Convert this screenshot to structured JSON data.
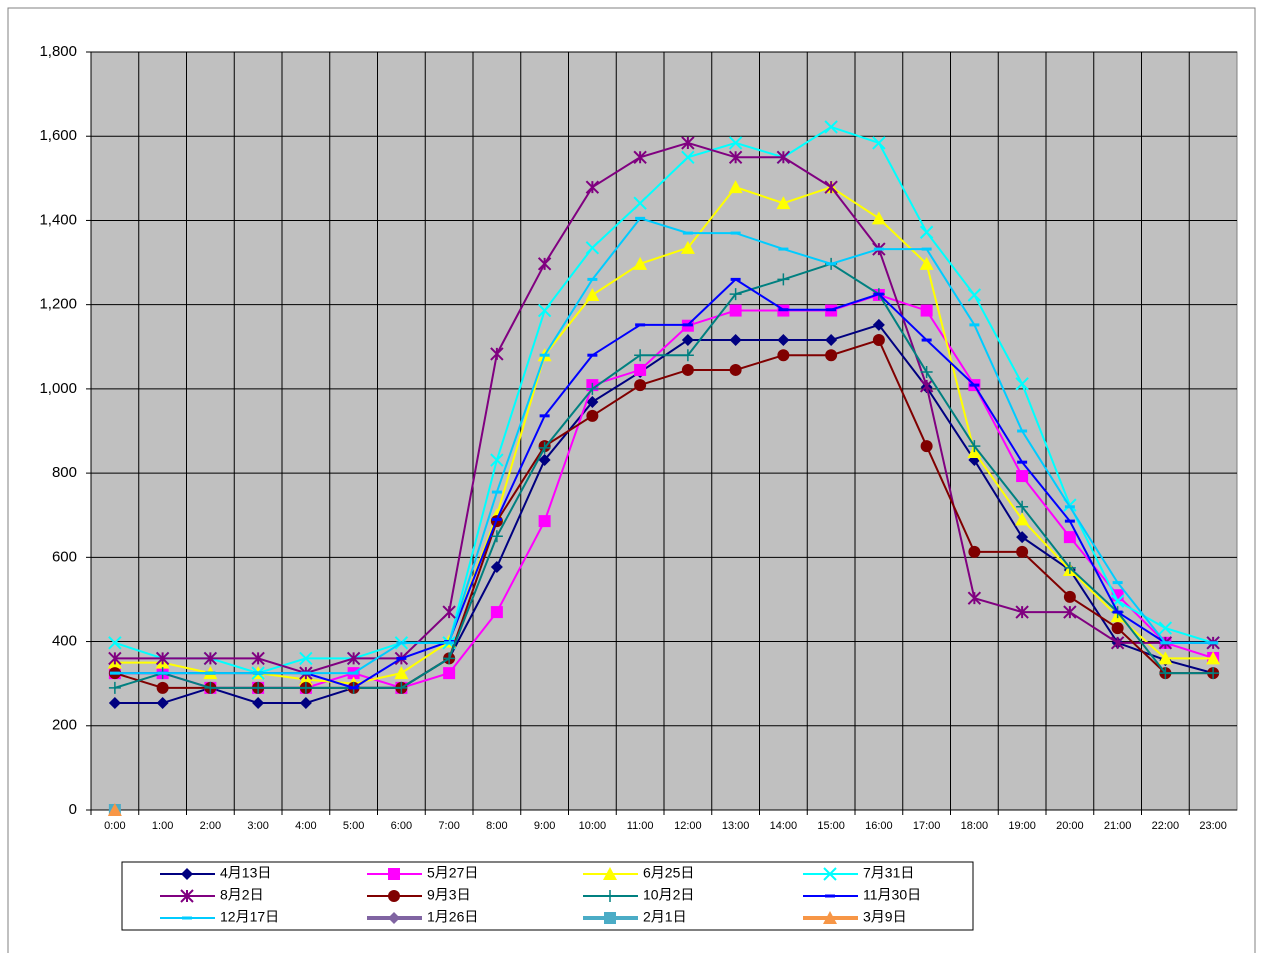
{
  "chart_data": {
    "type": "line",
    "categories": [
      "0:00",
      "1:00",
      "2:00",
      "3:00",
      "4:00",
      "5:00",
      "6:00",
      "7:00",
      "8:00",
      "9:00",
      "10:00",
      "11:00",
      "12:00",
      "13:00",
      "14:00",
      "15:00",
      "16:00",
      "17:00",
      "18:00",
      "19:00",
      "20:00",
      "21:00",
      "22:00",
      "23:00"
    ],
    "ylim": [
      0,
      1800
    ],
    "yticks": [
      0,
      200,
      400,
      600,
      800,
      {
        "value": 1000,
        "label": "1,000"
      },
      {
        "value": 1200,
        "label": "1,200"
      },
      {
        "value": 1400,
        "label": "1,400"
      },
      {
        "value": 1600,
        "label": "1,600"
      },
      {
        "value": 1800,
        "label": "1,800"
      }
    ],
    "grid": true,
    "series": [
      {
        "name": "4月13日",
        "color": "#000080",
        "marker": "diamond",
        "values": [
          254,
          254,
          290,
          254,
          254,
          290,
          290,
          360,
          577,
          831,
          969,
          1040,
          1116,
          1116,
          1116,
          1116,
          1152,
          1004,
          831,
          648,
          570,
          397,
          356,
          325
        ]
      },
      {
        "name": "5月27日",
        "color": "#ff00ff",
        "marker": "square",
        "values": [
          325,
          325,
          290,
          290,
          290,
          325,
          290,
          325,
          470,
          686,
          1009,
          1045,
          1150,
          1186,
          1186,
          1186,
          1223,
          1186,
          1009,
          793,
          648,
          510,
          397,
          361
        ]
      },
      {
        "name": "6月25日",
        "color": "#ffff00",
        "marker": "triangle",
        "values": [
          350,
          350,
          325,
          325,
          310,
          300,
          325,
          400,
          700,
          1080,
          1223,
          1297,
          1335,
          1479,
          1441,
          1479,
          1405,
          1297,
          850,
          690,
          570,
          460,
          360,
          360
        ]
      },
      {
        "name": "7月31日",
        "color": "#00ffff",
        "marker": "x",
        "values": [
          397,
          360,
          360,
          325,
          360,
          360,
          397,
          397,
          831,
          1186,
          1335,
          1441,
          1550,
          1584,
          1550,
          1622,
          1584,
          1372,
          1223,
          1012,
          724,
          496,
          432,
          397
        ]
      },
      {
        "name": "8月2日",
        "color": "#800080",
        "marker": "asterisk",
        "values": [
          360,
          360,
          360,
          360,
          325,
          360,
          360,
          470,
          1083,
          1297,
          1479,
          1550,
          1584,
          1550,
          1550,
          1479,
          1332,
          1007,
          503,
          470,
          470,
          397,
          397,
          397
        ]
      },
      {
        "name": "9月3日",
        "color": "#800000",
        "marker": "circle",
        "values": [
          325,
          290,
          290,
          290,
          290,
          290,
          290,
          360,
          686,
          864,
          936,
          1009,
          1045,
          1045,
          1080,
          1080,
          1116,
          864,
          613,
          613,
          506,
          432,
          325,
          325
        ]
      },
      {
        "name": "10月2日",
        "color": "#008080",
        "marker": "plus",
        "values": [
          290,
          325,
          290,
          290,
          290,
          290,
          290,
          360,
          650,
          860,
          1000,
          1080,
          1080,
          1225,
          1260,
          1297,
          1225,
          1040,
          864,
          720,
          575,
          470,
          325,
          325
        ]
      },
      {
        "name": "11月30日",
        "color": "#0000ff",
        "marker": "dash",
        "values": [
          325,
          325,
          325,
          325,
          325,
          290,
          360,
          400,
          690,
          936,
          1080,
          1152,
          1152,
          1260,
          1188,
          1188,
          1225,
          1116,
          1009,
          826,
          686,
          470,
          397,
          397
        ]
      },
      {
        "name": "12月17日",
        "color": "#00ccff",
        "marker": "dash",
        "values": [
          325,
          325,
          325,
          325,
          325,
          325,
          397,
          397,
          755,
          1080,
          1260,
          1405,
          1370,
          1370,
          1332,
          1297,
          1332,
          1332,
          1152,
          900,
          720,
          540,
          397,
          397
        ]
      },
      {
        "name": "1月26日",
        "color": "#8064a2",
        "marker": "diamond",
        "values": [
          0,
          null,
          null,
          null,
          null,
          null,
          null,
          null,
          null,
          null,
          null,
          null,
          null,
          null,
          null,
          null,
          null,
          null,
          null,
          null,
          null,
          null,
          null,
          null
        ]
      },
      {
        "name": "2月1日",
        "color": "#4bacc6",
        "marker": "square",
        "values": [
          0,
          null,
          null,
          null,
          null,
          null,
          null,
          null,
          null,
          null,
          null,
          null,
          null,
          null,
          null,
          null,
          null,
          null,
          null,
          null,
          null,
          null,
          null,
          null
        ]
      },
      {
        "name": "3月9日",
        "color": "#f79646",
        "marker": "triangle",
        "values": [
          0,
          null,
          null,
          null,
          null,
          null,
          null,
          null,
          null,
          null,
          null,
          null,
          null,
          null,
          null,
          null,
          null,
          null,
          null,
          null,
          null,
          null,
          null,
          null
        ]
      }
    ]
  }
}
